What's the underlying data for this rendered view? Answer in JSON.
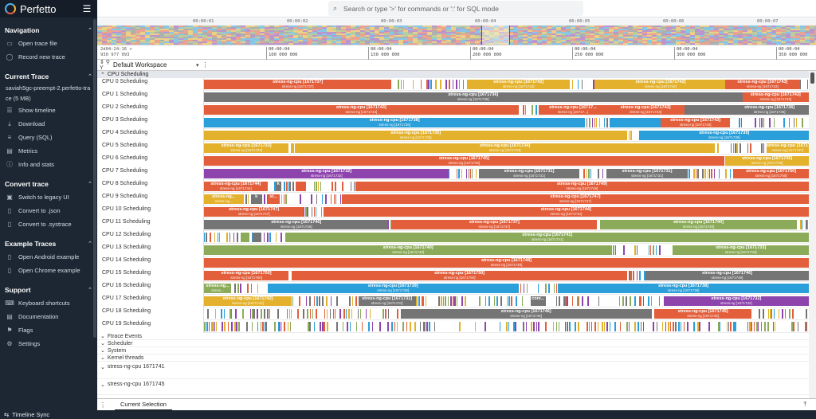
{
  "app": {
    "title": "Perfetto"
  },
  "sidebar": {
    "sections": [
      {
        "title": "Navigation",
        "items": [
          {
            "label": "Open trace file",
            "icon": "folder-icon"
          },
          {
            "label": "Record new trace",
            "icon": "record-icon"
          }
        ]
      },
      {
        "title": "Current Trace",
        "file": "saviah5gc-preempt-2.perfetto-trace (5 MB)",
        "items": [
          {
            "label": "Show timeline",
            "icon": "timeline-icon"
          },
          {
            "label": "Download",
            "icon": "download-icon"
          },
          {
            "label": "Query (SQL)",
            "icon": "database-icon"
          },
          {
            "label": "Metrics",
            "icon": "metrics-icon"
          },
          {
            "label": "Info and stats",
            "icon": "info-icon"
          }
        ]
      },
      {
        "title": "Convert trace",
        "items": [
          {
            "label": "Switch to legacy UI",
            "icon": "legacy-icon"
          },
          {
            "label": "Convert to .json",
            "icon": "file-icon"
          },
          {
            "label": "Convert to .systrace",
            "icon": "file-icon"
          }
        ]
      },
      {
        "title": "Example Traces",
        "items": [
          {
            "label": "Open Android example",
            "icon": "file-icon"
          },
          {
            "label": "Open Chrome example",
            "icon": "file-icon"
          }
        ]
      },
      {
        "title": "Support",
        "items": [
          {
            "label": "Keyboard shortcuts",
            "icon": "keyboard-icon"
          },
          {
            "label": "Documentation",
            "icon": "book-icon"
          },
          {
            "label": "Flags",
            "icon": "flag-icon"
          },
          {
            "label": "Settings",
            "icon": "gear-icon"
          }
        ]
      }
    ]
  },
  "omnibox": {
    "placeholder": "Search or type '>' for commands or ':' for SQL mode"
  },
  "overview": {
    "ticks": [
      "00:00:01",
      "00:00:02",
      "00:00:03",
      "00:00:04",
      "00:00:05",
      "00:00:06",
      "00:00:07"
    ]
  },
  "ruler": {
    "origin": [
      "2d04:24:16 +",
      "930 977 093"
    ],
    "ticks": [
      {
        "a": "00:00:04",
        "b": "100 000 000"
      },
      {
        "a": "00:00:04",
        "b": "150 000 000"
      },
      {
        "a": "00:00:04",
        "b": "200 000 000"
      },
      {
        "a": "00:00:04",
        "b": "250 000 000"
      },
      {
        "a": "00:00:04",
        "b": "300 000 000"
      },
      {
        "a": "00:00:04",
        "b": "350 000 000"
      }
    ]
  },
  "workspace": {
    "name": "Default Workspace"
  },
  "cpu_group": {
    "title": "CPU Scheduling"
  },
  "cpu_tracks": [
    {
      "label": "CPU 0 Scheduling",
      "slices": [
        {
          "s": 0,
          "e": 0.31,
          "c": "#e35f3c",
          "t": "stress-ng-cpu [1671737]",
          "sub": "stress-ng [1671737]"
        },
        {
          "s": 0.435,
          "e": 0.605,
          "c": "#e3b12b",
          "t": "stress-ng-cpu [1671742]",
          "sub": "stress-ng [1671742]"
        },
        {
          "s": 0.645,
          "e": 0.865,
          "c": "#e3b12b",
          "t": "stress-ng-cpu [1671742]",
          "sub": "stress-ng [1671742]"
        },
        {
          "s": 0.862,
          "e": 0.985,
          "c": "#e35f3c",
          "t": "stress-ng-cpu [1671743]",
          "sub": "stress-ng [1671743]"
        }
      ]
    },
    {
      "label": "CPU 1 Scheduling",
      "slices": [
        {
          "s": 0,
          "e": 0.89,
          "c": "#757575",
          "t": "stress-ng-cpu [1671736]",
          "sub": "stress-ng [1671736]"
        },
        {
          "s": 0.89,
          "e": 1,
          "c": "#e35f3c",
          "t": "stress-ng-cpu [1671743]",
          "sub": "stress-ng [1671743]"
        }
      ]
    },
    {
      "label": "CPU 2 Scheduling",
      "slices": [
        {
          "s": 0,
          "e": 0.52,
          "c": "#e35f3c",
          "t": "stress-ng-cpu [1671743]",
          "sub": "stress-ng [1671743]"
        },
        {
          "s": 0.555,
          "e": 0.665,
          "c": "#e35f3c",
          "t": "stress-ng-cpu [16717...",
          "sub": "stress-ng [16717...]"
        },
        {
          "s": 0.665,
          "e": 0.795,
          "c": "#e35f3c",
          "t": "stress-ng-cpu [1671743]",
          "sub": "stress-ng [1671743]"
        },
        {
          "s": 0.795,
          "e": 0.87,
          "c": "#757575",
          "t": "",
          "sub": ""
        },
        {
          "s": 0.87,
          "e": 1,
          "c": "#757575",
          "t": "stress-ng-cpu [1671736]",
          "sub": "stress-ng [1671736]"
        }
      ]
    },
    {
      "label": "CPU 3 Scheduling",
      "slices": [
        {
          "s": 0,
          "e": 0.63,
          "c": "#2b9fd9",
          "t": "stress-ng-cpu [1671738]",
          "sub": "stress-ng [1671738]"
        },
        {
          "s": 0.67,
          "e": 0.755,
          "c": "#2b9fd9",
          "t": "",
          "sub": ""
        },
        {
          "s": 0.755,
          "e": 0.87,
          "c": "#e35f3c",
          "t": "stress-ng-cpu [1671743]",
          "sub": "stress-ng [1671743]"
        }
      ]
    },
    {
      "label": "CPU 4 Scheduling",
      "slices": [
        {
          "s": 0,
          "e": 0.7,
          "c": "#e3b12b",
          "t": "stress-ng-cpu [1671735]",
          "sub": "stress-ng [1671735]"
        },
        {
          "s": 0.72,
          "e": 1,
          "c": "#2b9fd9",
          "t": "stress-ng-cpu [1671739]",
          "sub": "stress-ng [1671739]"
        }
      ]
    },
    {
      "label": "CPU 5 Scheduling",
      "slices": [
        {
          "s": 0,
          "e": 0.14,
          "c": "#e3b12b",
          "t": "stress-ng-cpu [1671733]",
          "sub": "stress-ng [1671733]"
        },
        {
          "s": 0.15,
          "e": 0.845,
          "c": "#e3b12b",
          "t": "stress-ng-cpu [1671734]",
          "sub": "stress-ng [1671734]"
        },
        {
          "s": 0.93,
          "e": 1,
          "c": "#e3b12b",
          "t": "stress-ng-cpu [1671737]",
          "sub": "stress-ng [1671737]"
        }
      ]
    },
    {
      "label": "CPU 6 Scheduling",
      "slices": [
        {
          "s": 0,
          "e": 0.86,
          "c": "#e35f3c",
          "t": "stress-ng-cpu [1671745]",
          "sub": "stress-ng [1671745]"
        },
        {
          "s": 0.862,
          "e": 1,
          "c": "#e3b12b",
          "t": "stress-ng-cpu [1671735]",
          "sub": "stress-ng [1671735]"
        }
      ]
    },
    {
      "label": "CPU 7 Scheduling",
      "slices": [
        {
          "s": 0,
          "e": 0.405,
          "c": "#8e44ad",
          "t": "stress-ng-cpu [1671732]",
          "sub": "stress-ng [1671732]"
        },
        {
          "s": 0.455,
          "e": 0.62,
          "c": "#757575",
          "t": "stress-ng-cpu [1671731]",
          "sub": "stress-ng [1671731]"
        },
        {
          "s": 0.665,
          "e": 0.8,
          "c": "#757575",
          "t": "stress-ng-cpu [1671731]",
          "sub": "stress-ng [1671731]"
        },
        {
          "s": 0.875,
          "e": 1,
          "c": "#e35f3c",
          "t": "stress-ng-cpu [1671750]",
          "sub": "stress-ng [1671750]"
        }
      ]
    },
    {
      "label": "CPU 8 Scheduling",
      "slices": [
        {
          "s": 0,
          "e": 0.105,
          "c": "#e35f3c",
          "t": "stress-ng-cpu [1671744]",
          "sub": "stress-ng [1671744]"
        },
        {
          "s": 0.118,
          "e": 0.128,
          "c": "#757575",
          "t": "k",
          "sub": ""
        },
        {
          "s": 0.152,
          "e": 0.167,
          "c": "#e35f3c",
          "t": "",
          "sub": ""
        },
        {
          "s": 0.25,
          "e": 1,
          "c": "#e35f3c",
          "t": "stress-ng-cpu [1671749]",
          "sub": "stress-ng [1671749]"
        }
      ]
    },
    {
      "label": "CPU 9 Scheduling",
      "slices": [
        {
          "s": 0,
          "e": 0.065,
          "c": "#e3b12b",
          "t": "stress-ng...",
          "sub": "stress-ng..."
        },
        {
          "s": 0.078,
          "e": 0.095,
          "c": "#757575",
          "t": "k",
          "sub": ""
        },
        {
          "s": 0.105,
          "e": 0.125,
          "c": "#e35f3c",
          "t": "st...",
          "sub": ""
        },
        {
          "s": 0.228,
          "e": 1,
          "c": "#e35f3c",
          "t": "stress-ng-cpu [1671747]",
          "sub": "stress-ng [1671747]"
        }
      ]
    },
    {
      "label": "CPU 10 Scheduling",
      "slices": [
        {
          "s": 0,
          "e": 0.165,
          "c": "#e35f3c",
          "t": "stress-ng-cpu [1671747]",
          "sub": "stress-ng [1671747]"
        },
        {
          "s": 0.197,
          "e": 1,
          "c": "#e35f3c",
          "t": "stress-ng-cpu [1671744]",
          "sub": "stress-ng [1671744]"
        }
      ]
    },
    {
      "label": "CPU 11 Scheduling",
      "slices": [
        {
          "s": 0,
          "e": 0.305,
          "c": "#757575",
          "t": "stress-ng-cpu [1671746]",
          "sub": "stress-ng [1671746]"
        },
        {
          "s": 0.31,
          "e": 0.65,
          "c": "#e35f3c",
          "t": "stress-ng-cpu [1671737]",
          "sub": "stress-ng [1671737]"
        },
        {
          "s": 0.655,
          "e": 0.98,
          "c": "#8cab5a",
          "t": "stress-ng-cpu [1671740]",
          "sub": "stress-ng [1671740]"
        }
      ]
    },
    {
      "label": "CPU 12 Scheduling",
      "slices": [
        {
          "s": 0.06,
          "e": 0.075,
          "c": "#8cab5a",
          "t": "",
          "sub": ""
        },
        {
          "s": 0.08,
          "e": 0.095,
          "c": "#757575",
          "t": "",
          "sub": ""
        },
        {
          "s": 0.135,
          "e": 1,
          "c": "#8cab5a",
          "t": "stress-ng-cpu [1671741]",
          "sub": "stress-ng [1671741]"
        }
      ]
    },
    {
      "label": "CPU 13 Scheduling",
      "slices": [
        {
          "s": 0,
          "e": 0.675,
          "c": "#8cab5a",
          "t": "stress-ng-cpu [1671740]",
          "sub": "stress-ng [1671740]"
        },
        {
          "s": 0.775,
          "e": 1,
          "c": "#8cab5a",
          "t": "stress-ng-cpu [1671733]",
          "sub": "stress-ng [1671733]"
        }
      ]
    },
    {
      "label": "CPU 14 Scheduling",
      "slices": [
        {
          "s": 0,
          "e": 1,
          "c": "#e35f3c",
          "t": "stress-ng-cpu [1671748]",
          "sub": "stress-ng [1671748]"
        }
      ]
    },
    {
      "label": "CPU 15 Scheduling",
      "slices": [
        {
          "s": 0,
          "e": 0.14,
          "c": "#e35f3c",
          "t": "stress-ng-cpu [1671750]",
          "sub": "stress-ng [1671750]"
        },
        {
          "s": 0.145,
          "e": 0.7,
          "c": "#e35f3c",
          "t": "stress-ng-cpu [1671750]",
          "sub": "stress-ng [1671750]"
        },
        {
          "s": 0.73,
          "e": 1,
          "c": "#757575",
          "t": "stress-ng-cpu [1671746]",
          "sub": "stress-ng [1671746]"
        }
      ]
    },
    {
      "label": "CPU 16 Scheduling",
      "slices": [
        {
          "s": 0,
          "e": 0.045,
          "c": "#8cab5a",
          "t": "stress-ng...",
          "sub": "stress..."
        },
        {
          "s": 0.105,
          "e": 0.52,
          "c": "#2b9fd9",
          "t": "stress-ng-cpu [1671739]",
          "sub": "stress-ng [1671739]"
        },
        {
          "s": 0.585,
          "e": 1,
          "c": "#2b9fd9",
          "t": "stress-ng-cpu [1671738]",
          "sub": "stress-ng [1671738]"
        }
      ]
    },
    {
      "label": "CPU 17 Scheduling",
      "slices": [
        {
          "s": 0,
          "e": 0.145,
          "c": "#e3b12b",
          "t": "stress-ng-cpu [1671742]",
          "sub": "stress-ng [1671742]"
        },
        {
          "s": 0.255,
          "e": 0.35,
          "c": "#757575",
          "t": "stress-ng-cpu [1671731]",
          "sub": "stress-ng [1671731]"
        },
        {
          "s": 0.54,
          "e": 0.565,
          "c": "#757575",
          "t": "core...",
          "sub": ""
        },
        {
          "s": 0.76,
          "e": 1,
          "c": "#8e44ad",
          "t": "stress-ng-cpu [1671732]",
          "sub": "stress-ng [1671732]"
        }
      ]
    },
    {
      "label": "CPU 18 Scheduling",
      "slices": [
        {
          "s": 0.325,
          "e": 0.74,
          "c": "#757575",
          "t": "stress-ng-cpu [1671746]",
          "sub": "stress-ng [1671746]"
        },
        {
          "s": 0.745,
          "e": 0.905,
          "c": "#e35f3c",
          "t": "stress-ng-cpu [1671745]",
          "sub": "stress-ng [1671745]"
        }
      ]
    },
    {
      "label": "CPU 19 Scheduling",
      "slices": []
    }
  ],
  "other_groups": [
    {
      "label": "Ftrace Events",
      "tall": ""
    },
    {
      "label": "Scheduler",
      "tall": ""
    },
    {
      "label": "System",
      "tall": ""
    },
    {
      "label": "Kernel threads",
      "tall": ""
    },
    {
      "label": "stress-ng-cpu 1671741",
      "tall": "tall"
    },
    {
      "label": "stress-ng-cpu 1671745",
      "tall": "tall2"
    }
  ],
  "bottom_panel": {
    "tab": "Current Selection"
  },
  "statusbar": {
    "text": "Timeline Sync"
  },
  "colors": {
    "orange": "#e35f3c",
    "yellow": "#e3b12b",
    "blue": "#2b9fd9",
    "gray": "#757575",
    "purple": "#8e44ad",
    "green": "#8cab5a"
  }
}
